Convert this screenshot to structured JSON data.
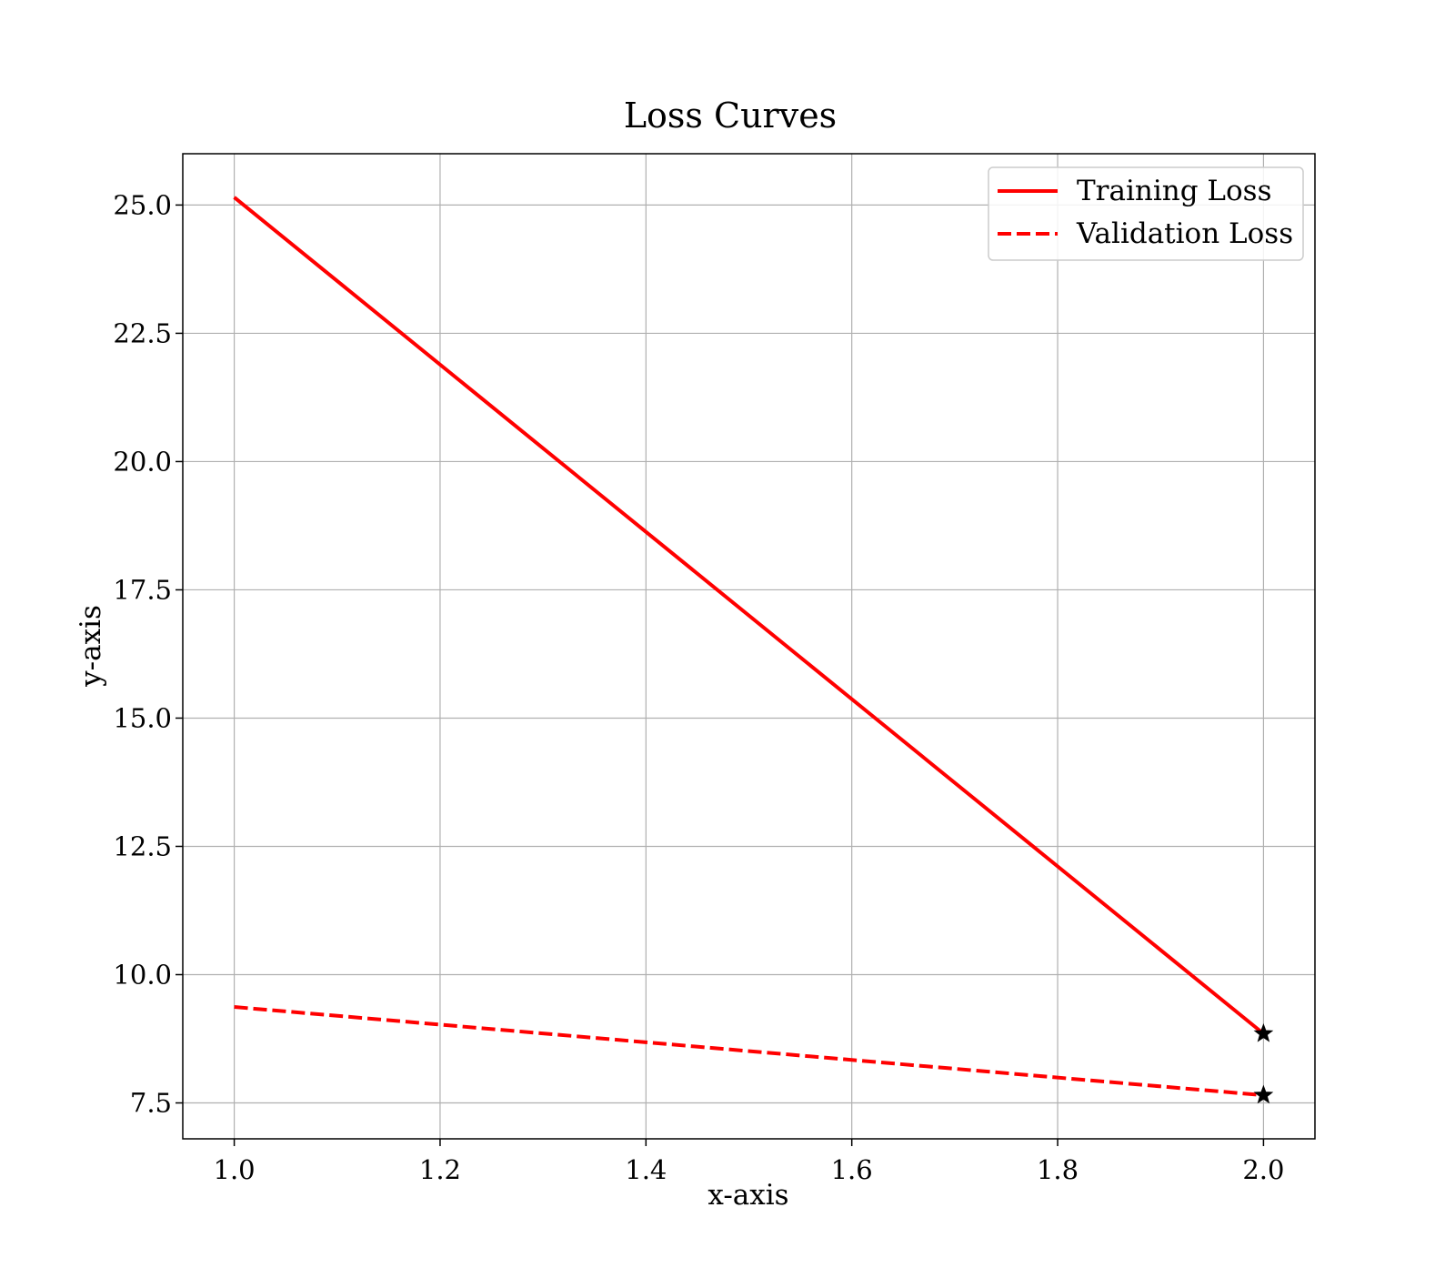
{
  "chart_data": {
    "type": "line",
    "title": "Loss Curves",
    "xlabel": "x-axis",
    "ylabel": "y-axis",
    "xlim": [
      0.95,
      2.05
    ],
    "ylim": [
      6.8,
      26.0
    ],
    "xticks": [
      1.0,
      1.2,
      1.4,
      1.6,
      1.8,
      2.0
    ],
    "xtick_labels": [
      "1.0",
      "1.2",
      "1.4",
      "1.6",
      "1.8",
      "2.0"
    ],
    "yticks": [
      7.5,
      10.0,
      12.5,
      15.0,
      17.5,
      20.0,
      22.5,
      25.0
    ],
    "ytick_labels": [
      "7.5",
      "10.0",
      "12.5",
      "15.0",
      "17.5",
      "20.0",
      "22.5",
      "25.0"
    ],
    "grid": true,
    "legend_position": "top-right",
    "series": [
      {
        "name": "Training Loss",
        "color": "#ff0000",
        "line_style": "solid",
        "x": [
          1.0,
          2.0
        ],
        "y": [
          25.15,
          8.85
        ],
        "end_marker": "star"
      },
      {
        "name": "Validation Loss",
        "color": "#ff0000",
        "line_style": "dashed",
        "x": [
          1.0,
          2.0
        ],
        "y": [
          9.37,
          7.65
        ],
        "end_marker": "star"
      }
    ],
    "colors": {
      "grid": "#b0b0b0",
      "axes": "#000000",
      "marker": "#000000"
    }
  }
}
